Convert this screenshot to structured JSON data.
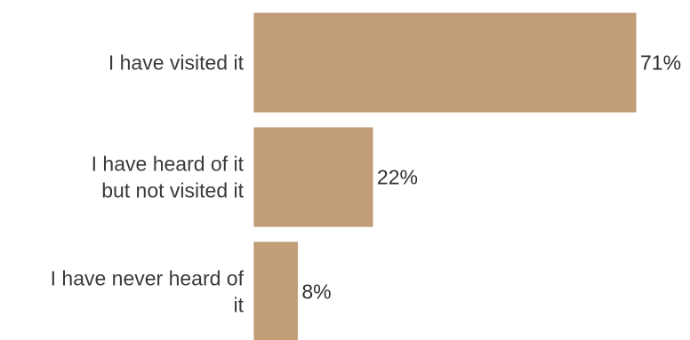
{
  "colors": {
    "bar": "#c19e78",
    "bar_edge": "#b8926a",
    "text": "#3a3a3a",
    "background": "#ffffff"
  },
  "chart_data": {
    "type": "bar",
    "orientation": "horizontal",
    "categories": [
      [
        "I have visited it"
      ],
      [
        "I have heard of it",
        "but not visited it"
      ],
      [
        "I have never heard of",
        "it"
      ]
    ],
    "values": [
      71,
      22,
      8
    ],
    "value_labels": [
      "71%",
      "22%",
      "8%"
    ],
    "title": "",
    "xlabel": "",
    "ylabel": "",
    "xlim": [
      0,
      71
    ],
    "grid": false,
    "legend": "none"
  }
}
